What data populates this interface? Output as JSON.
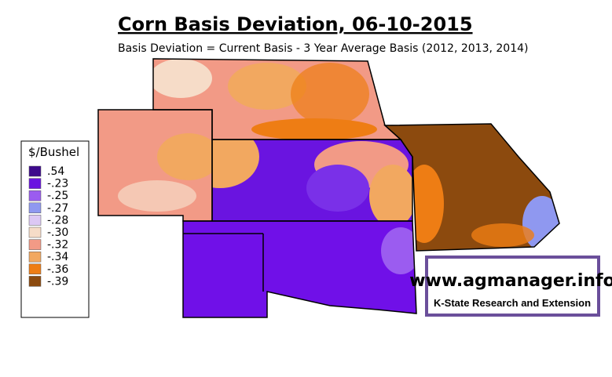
{
  "header": {
    "title": "Corn Basis Deviation, 06-10-2015",
    "subtitle": "Basis Deviation = Current Basis - 3 Year Average Basis (2012, 2013, 2014)"
  },
  "legend": {
    "title": "$/Bushel",
    "items": [
      {
        "label": ".54",
        "color": "#3d0a8c"
      },
      {
        "label": "-.23",
        "color": "#6a14e0"
      },
      {
        "label": "-.25",
        "color": "#9b5cf0"
      },
      {
        "label": "-.27",
        "color": "#8f98f0"
      },
      {
        "label": "-.28",
        "color": "#dcc8f4"
      },
      {
        "label": "-.30",
        "color": "#f6dcc8"
      },
      {
        "label": "-.32",
        "color": "#f29a86"
      },
      {
        "label": "-.34",
        "color": "#f2a860"
      },
      {
        "label": "-.36",
        "color": "#ee7d14"
      },
      {
        "label": "-.39",
        "color": "#8c4a0e"
      }
    ]
  },
  "logo": {
    "url": "www.agmanager.info",
    "org": "K-State Research and Extension"
  }
}
